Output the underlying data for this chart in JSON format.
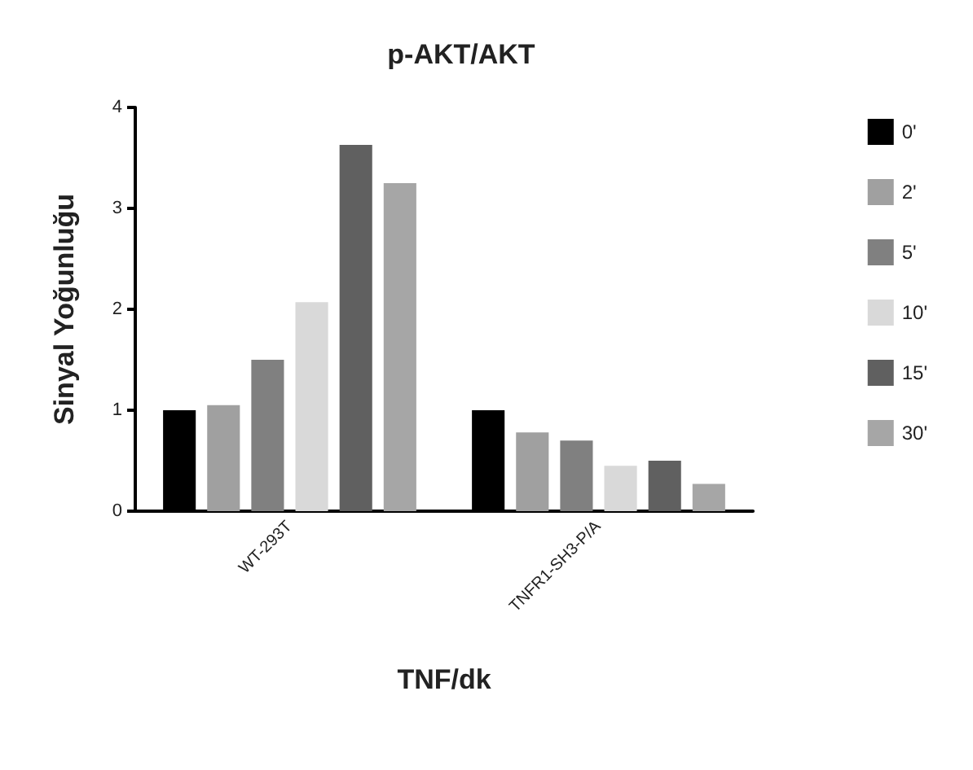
{
  "chart_data": {
    "type": "bar",
    "title": "p-AKT/AKT",
    "xlabel": "TNF/dk",
    "ylabel": "Sinyal Yoğunluğu",
    "categories": [
      "WT-293T",
      "TNFR1-SH3-P/A"
    ],
    "series": [
      {
        "name": "0'",
        "color": "#000000",
        "values": [
          1.0,
          1.0
        ]
      },
      {
        "name": "2'",
        "color": "#a0a0a0",
        "values": [
          1.05,
          0.78
        ]
      },
      {
        "name": "5'",
        "color": "#808080",
        "values": [
          1.5,
          0.7
        ]
      },
      {
        "name": "10'",
        "color": "#d9d9d9",
        "values": [
          2.07,
          0.45
        ]
      },
      {
        "name": "15'",
        "color": "#606060",
        "values": [
          3.63,
          0.5
        ]
      },
      {
        "name": "30'",
        "color": "#a6a6a6",
        "values": [
          3.25,
          0.27
        ]
      }
    ],
    "ylim": [
      0,
      4
    ],
    "yticks": [
      0,
      1,
      2,
      3,
      4
    ],
    "grid": false,
    "legend": "right"
  }
}
